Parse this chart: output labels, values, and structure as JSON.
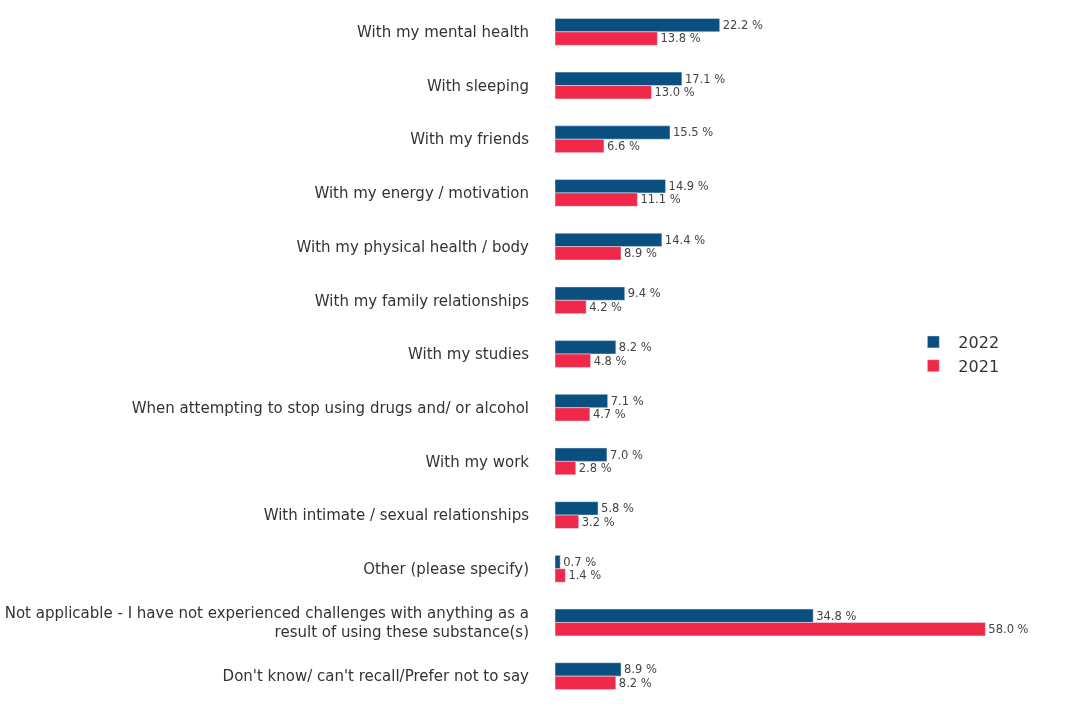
{
  "chart_data": {
    "type": "bar",
    "orientation": "horizontal",
    "categories": [
      "With my mental health",
      "With sleeping",
      "With my friends",
      "With my energy / motivation",
      "With my physical health / body",
      "With my family relationships",
      "With my studies",
      "When attempting to stop using drugs and/ or alcohol",
      "With my work",
      "With intimate / sexual relationships",
      "Other (please specify)",
      "Not applicable - I have not experienced challenges with anything as a result of using these substance(s)",
      "Don't know/ can't recall/Prefer not to say"
    ],
    "series": [
      {
        "name": "2022",
        "color": "#0b4f80",
        "values": [
          22.2,
          17.1,
          15.5,
          14.9,
          14.4,
          9.4,
          8.2,
          7.1,
          7.0,
          5.8,
          0.7,
          34.8,
          8.9
        ],
        "value_labels": [
          "22.2 %",
          "17.1 %",
          "15.5 %",
          "14.9 %",
          "14.4 %",
          "9.4 %",
          "8.2 %",
          "7.1 %",
          "7.0 %",
          "5.8 %",
          "0.7 %",
          "34.8 %",
          "8.9 %"
        ]
      },
      {
        "name": "2021",
        "color": "#f0284a",
        "values": [
          13.8,
          13.0,
          6.6,
          11.1,
          8.9,
          4.2,
          4.8,
          4.7,
          2.8,
          3.2,
          1.4,
          58.0,
          8.2
        ],
        "value_labels": [
          "13.8 %",
          "13.0 %",
          "6.6 %",
          "11.1 %",
          "8.9 %",
          "4.2 %",
          "4.8 %",
          "4.7 %",
          "2.8 %",
          "3.2 %",
          "1.4 %",
          "58.0 %",
          "8.2 %"
        ]
      }
    ],
    "tick_labels": "y",
    "legend": "right"
  }
}
